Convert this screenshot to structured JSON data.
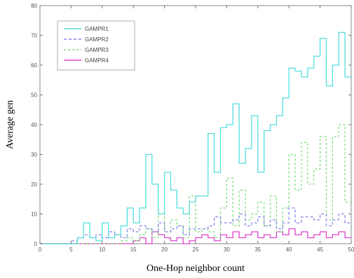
{
  "chart_data": {
    "type": "line",
    "title": "",
    "xlabel": "One-Hop neighbor count",
    "ylabel": "Average gen",
    "xlim": [
      0,
      50
    ],
    "ylim": [
      0,
      80
    ],
    "xticks": [
      0,
      5,
      10,
      15,
      20,
      25,
      30,
      35,
      40,
      45,
      50
    ],
    "yticks": [
      0,
      10,
      20,
      30,
      40,
      50,
      60,
      70,
      80
    ],
    "grid": false,
    "legend_position": "top-left",
    "x": [
      1,
      2,
      3,
      4,
      5,
      6,
      7,
      8,
      9,
      10,
      11,
      12,
      13,
      14,
      15,
      16,
      17,
      18,
      19,
      20,
      21,
      22,
      23,
      24,
      25,
      26,
      27,
      28,
      29,
      30,
      31,
      32,
      33,
      34,
      35,
      36,
      37,
      38,
      39,
      40,
      41,
      42,
      43,
      44,
      45,
      46,
      47,
      48,
      49,
      50
    ],
    "series": [
      {
        "name": "GAMPR1",
        "color": "#55dddd",
        "dash": "solid",
        "values": [
          0,
          0,
          0,
          0,
          0,
          0,
          2,
          7,
          2,
          1,
          7,
          2,
          3,
          6,
          12,
          7,
          12,
          30,
          20,
          10,
          24,
          18,
          12,
          10,
          14,
          16,
          16,
          37,
          24,
          39,
          40,
          47,
          27,
          32,
          43,
          24,
          38,
          40,
          43,
          49,
          59,
          58,
          56,
          59,
          63,
          69,
          53,
          60,
          71,
          56
        ]
      },
      {
        "name": "GAMPR2",
        "color": "#8888ee",
        "dash": "4,3",
        "values": [
          0,
          0,
          0,
          0,
          0,
          1,
          2,
          3,
          2,
          3,
          2,
          4,
          3,
          2,
          5,
          4,
          6,
          5,
          4,
          7,
          4,
          5,
          6,
          3,
          5,
          5,
          5,
          6,
          9,
          7,
          7,
          8,
          10,
          6,
          7,
          9,
          6,
          8,
          5,
          7,
          12,
          7,
          9,
          9,
          8,
          10,
          6,
          8,
          10,
          7
        ]
      },
      {
        "name": "GAMPR3",
        "color": "#77dd77",
        "dash": "3,3",
        "values": [
          0,
          0,
          0,
          0,
          0,
          0,
          0,
          0,
          0,
          0,
          0,
          0,
          0,
          1,
          2,
          1,
          3,
          5,
          2,
          10,
          4,
          8,
          6,
          2,
          16,
          4,
          5,
          4,
          2,
          12,
          22,
          6,
          18,
          8,
          10,
          14,
          6,
          16,
          4,
          12,
          30,
          18,
          34,
          20,
          25,
          36,
          8,
          36,
          40,
          14
        ]
      },
      {
        "name": "GAMPR4",
        "color": "#dd44cc",
        "dash": "solid",
        "values": [
          0,
          0,
          0,
          0,
          0,
          0,
          0,
          0,
          0,
          0,
          0,
          0,
          0,
          0,
          0,
          1,
          2,
          0,
          4,
          3,
          2,
          1,
          2,
          0,
          1,
          2,
          3,
          2,
          1,
          3,
          2,
          4,
          2,
          3,
          4,
          2,
          3,
          2,
          4,
          3,
          5,
          3,
          4,
          2,
          3,
          4,
          2,
          3,
          4,
          2
        ]
      }
    ]
  }
}
